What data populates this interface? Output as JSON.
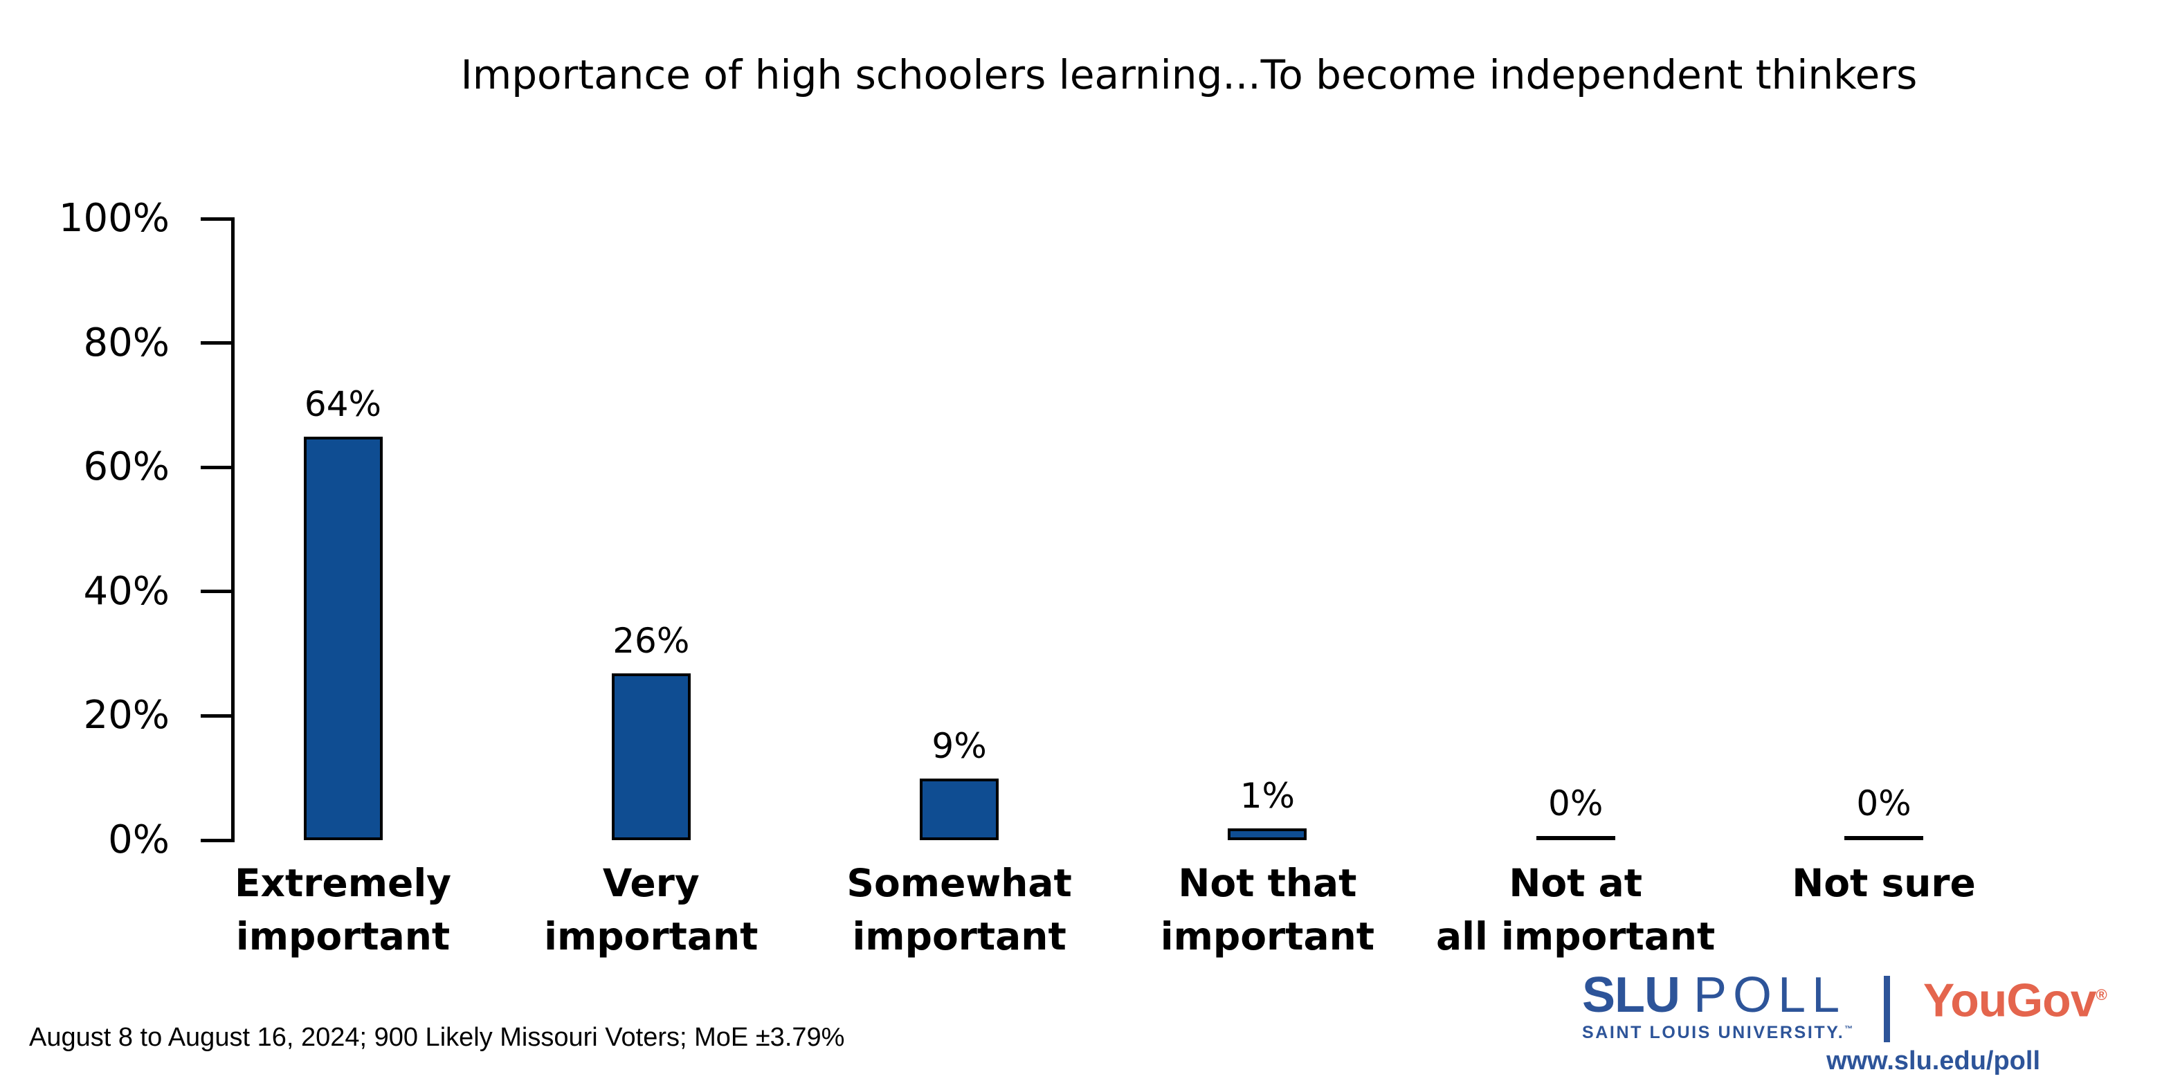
{
  "title": "Importance of high schoolers learning...To become independent thinkers",
  "footnote": "August 8 to August 16, 2024; 900 Likely Missouri Voters; MoE ±3.79%",
  "colors": {
    "bar_fill": "#0F4D92",
    "bar_border": "#000000",
    "axis": "#000000",
    "slu_blue": "#2D5499",
    "yougov_red": "#E4654D",
    "text": "#000000"
  },
  "chart_data": {
    "type": "bar",
    "title": "Importance of high schoolers learning...To become independent thinkers",
    "categories": [
      "Extremely important",
      "Very important",
      "Somewhat important",
      "Not that important",
      "Not at all important",
      "Not sure"
    ],
    "category_label_lines": [
      "Extremely\nimportant",
      "Very\nimportant",
      "Somewhat\nimportant",
      "Not that\nimportant",
      "Not at\nall important",
      "Not sure"
    ],
    "values": [
      64,
      26,
      9,
      1,
      0,
      0
    ],
    "value_labels": [
      "64%",
      "26%",
      "9%",
      "1%",
      "0%",
      "0%"
    ],
    "xlabel": "",
    "ylabel": "",
    "ylim": [
      0,
      100
    ],
    "grid": false,
    "legend_position": "none",
    "y_ticks": [
      {
        "label": "0%",
        "value": 0
      },
      {
        "label": "20%",
        "value": 20
      },
      {
        "label": "40%",
        "value": 40
      },
      {
        "label": "60%",
        "value": 60
      },
      {
        "label": "80%",
        "value": 80
      },
      {
        "label": "100%",
        "value": 100
      }
    ]
  },
  "logo": {
    "slu": "SLU",
    "poll": "POLL",
    "tagline": "SAINT LOUIS UNIVERSITY.",
    "tagline_tm": "™",
    "yougov": "YouGov",
    "yougov_reg": "®",
    "website": "www.slu.edu/poll"
  }
}
